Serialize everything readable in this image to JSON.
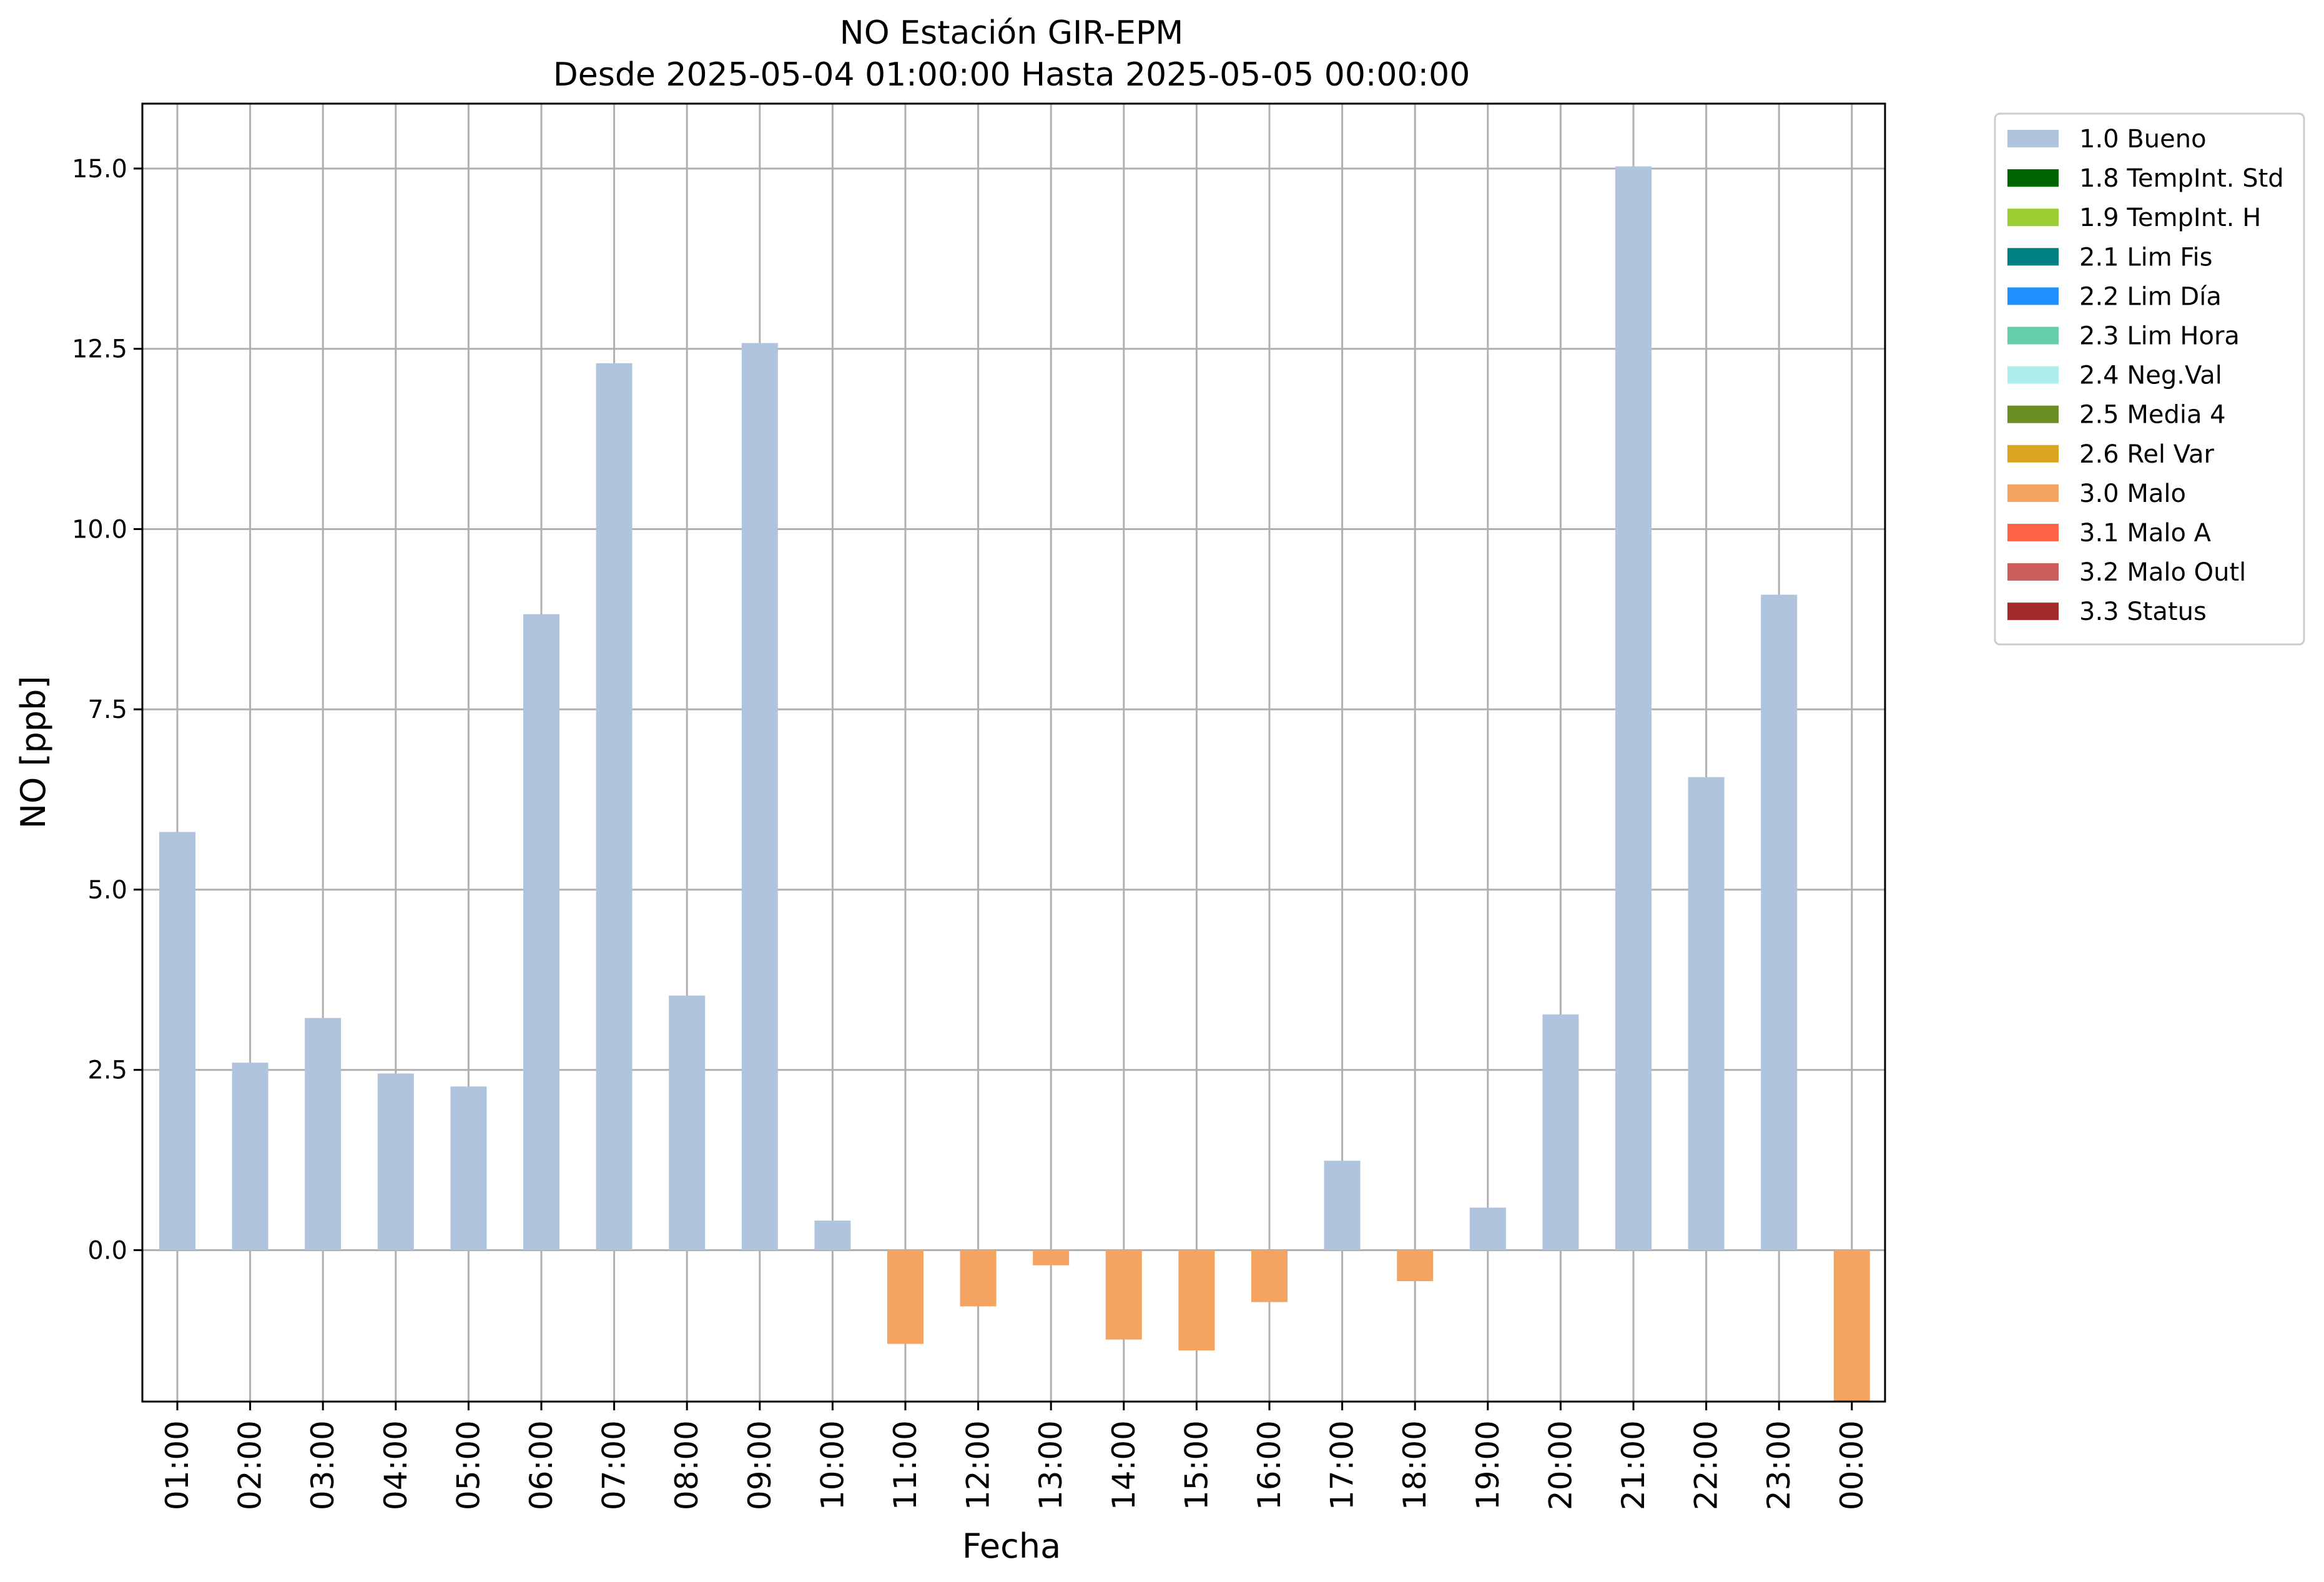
{
  "chart_data": {
    "type": "bar",
    "title": "NO Estación GIR-EPM",
    "subtitle": "Desde 2025-05-04 01:00:00 Hasta 2025-05-05 00:00:00",
    "xlabel": "Fecha",
    "ylabel": "NO [ppb]",
    "ylim": [
      -2.1,
      15.9
    ],
    "yticks": [
      0.0,
      2.5,
      5.0,
      7.5,
      10.0,
      12.5,
      15.0
    ],
    "ytick_labels": [
      "0.0",
      "2.5",
      "5.0",
      "7.5",
      "10.0",
      "12.5",
      "15.0"
    ],
    "grid": true,
    "legend_position": "outside-top-right",
    "categories": [
      "01:00",
      "02:00",
      "03:00",
      "04:00",
      "05:00",
      "06:00",
      "07:00",
      "08:00",
      "09:00",
      "10:00",
      "11:00",
      "12:00",
      "13:00",
      "14:00",
      "15:00",
      "16:00",
      "17:00",
      "18:00",
      "19:00",
      "20:00",
      "21:00",
      "22:00",
      "23:00",
      "00:00"
    ],
    "values": [
      5.8,
      2.6,
      3.22,
      2.45,
      2.27,
      8.82,
      12.3,
      3.53,
      12.58,
      0.41,
      -1.3,
      -0.78,
      -0.21,
      -1.24,
      -1.39,
      -0.72,
      1.24,
      -0.43,
      0.59,
      3.27,
      15.03,
      6.56,
      9.09,
      -2.1
    ],
    "value_flags": [
      "1.0 Bueno",
      "1.0 Bueno",
      "1.0 Bueno",
      "1.0 Bueno",
      "1.0 Bueno",
      "1.0 Bueno",
      "1.0 Bueno",
      "1.0 Bueno",
      "1.0 Bueno",
      "1.0 Bueno",
      "3.0 Malo",
      "3.0 Malo",
      "3.0 Malo",
      "3.0 Malo",
      "3.0 Malo",
      "3.0 Malo",
      "1.0 Bueno",
      "3.0 Malo",
      "1.0 Bueno",
      "1.0 Bueno",
      "1.0 Bueno",
      "1.0 Bueno",
      "1.0 Bueno",
      "3.0 Malo"
    ],
    "legend": [
      {
        "label": "1.0 Bueno",
        "color": "#b0c4de"
      },
      {
        "label": "1.8 TempInt. Std",
        "color": "#006400"
      },
      {
        "label": "1.9 TempInt. H",
        "color": "#9acd32"
      },
      {
        "label": "2.1 Lim Fis",
        "color": "#008080"
      },
      {
        "label": "2.2 Lim Día",
        "color": "#1e90ff"
      },
      {
        "label": "2.3 Lim Hora",
        "color": "#66cdaa"
      },
      {
        "label": "2.4 Neg.Val",
        "color": "#afeeee"
      },
      {
        "label": "2.5 Media 4",
        "color": "#6b8e23"
      },
      {
        "label": "2.6 Rel Var",
        "color": "#daa520"
      },
      {
        "label": "3.0 Malo",
        "color": "#f4a460"
      },
      {
        "label": "3.1 Malo A",
        "color": "#ff6347"
      },
      {
        "label": "3.2 Malo Outl",
        "color": "#cd5c5c"
      },
      {
        "label": "3.3 Status",
        "color": "#a52a2a"
      }
    ]
  }
}
